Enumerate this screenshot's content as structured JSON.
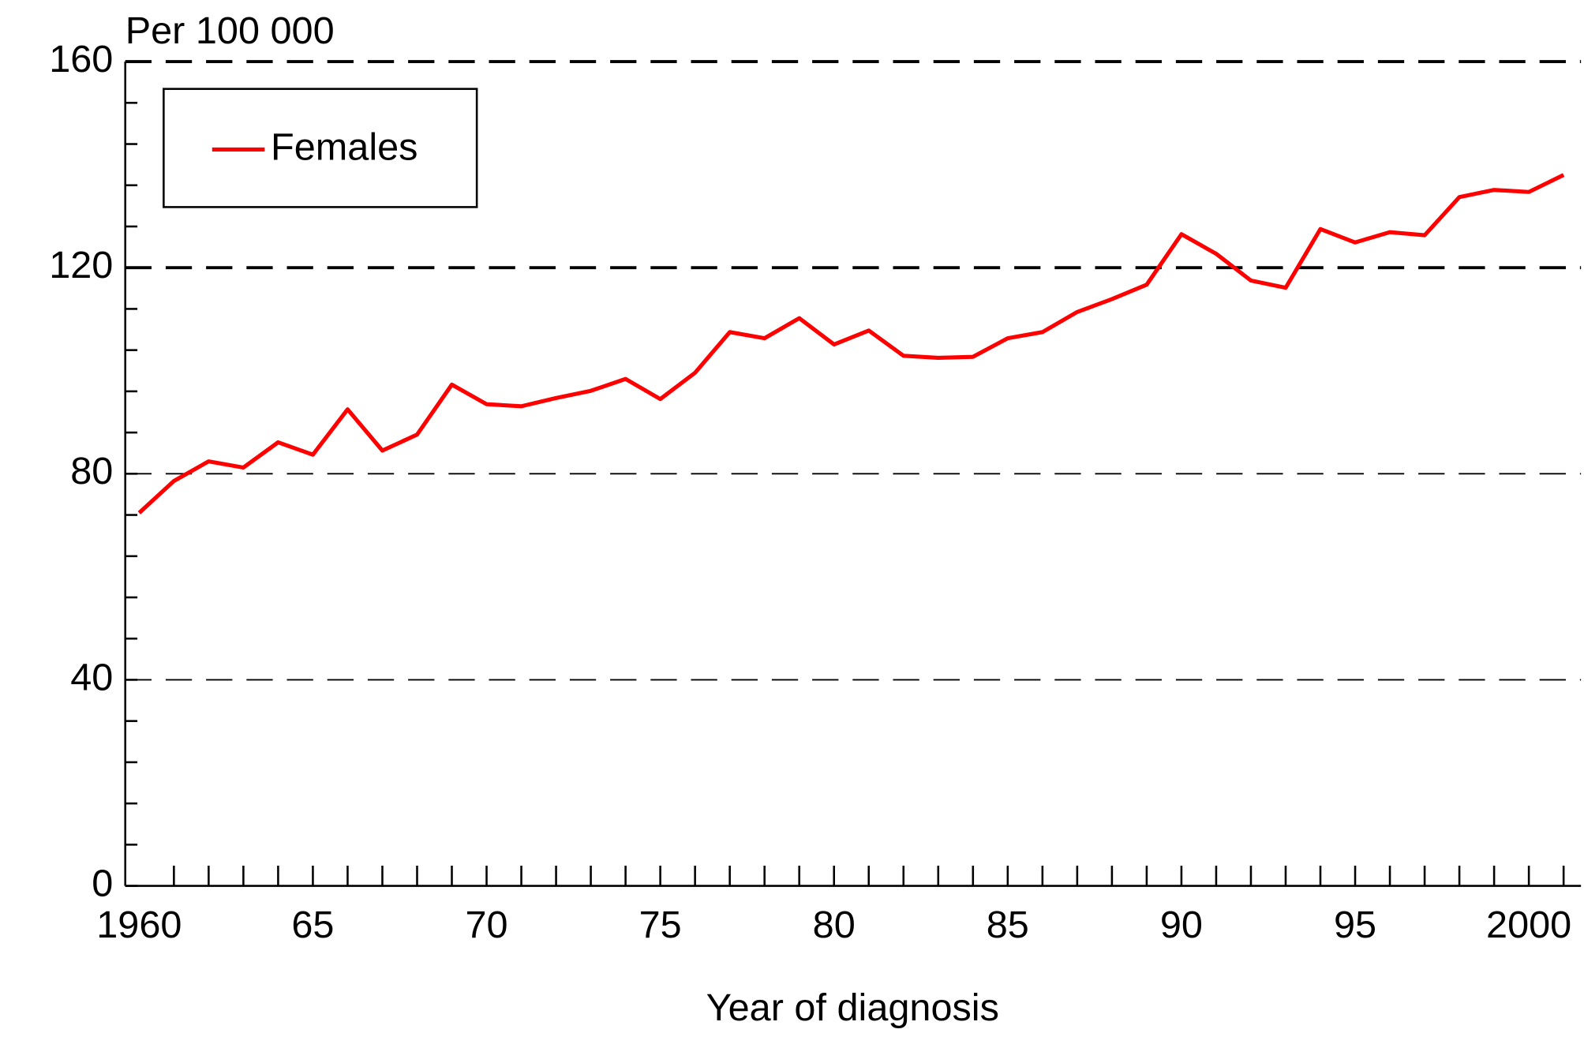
{
  "chart_data": {
    "type": "line",
    "y_label": "Per 100 000",
    "x_label": "Year of diagnosis",
    "x": [
      1960,
      1961,
      1962,
      1963,
      1964,
      1965,
      1966,
      1967,
      1968,
      1969,
      1970,
      1971,
      1972,
      1973,
      1974,
      1975,
      1976,
      1977,
      1978,
      1979,
      1980,
      1981,
      1982,
      1983,
      1984,
      1985,
      1986,
      1987,
      1988,
      1989,
      1990,
      1991,
      1992,
      1993,
      1994,
      1995,
      1996,
      1997,
      1998,
      1999,
      2000,
      2001
    ],
    "series": [
      {
        "name": "Females",
        "color": "#ff0000",
        "values": [
          72.4,
          78.6,
          82.4,
          81.2,
          86.1,
          83.7,
          92.5,
          84.5,
          87.6,
          97.3,
          93.5,
          93.1,
          94.7,
          96.1,
          98.4,
          94.5,
          99.6,
          107.5,
          106.3,
          110.2,
          105.1,
          107.8,
          102.9,
          102.5,
          102.7,
          106.3,
          107.5,
          111.4,
          113.9,
          116.7,
          126.5,
          122.7,
          117.5,
          116.1,
          127.5,
          124.9,
          126.9,
          126.3,
          133.7,
          135.1,
          134.7,
          138.0
        ]
      }
    ],
    "xlim": [
      1959.6,
      2001.5
    ],
    "ylim": [
      0,
      160
    ],
    "xticks": [
      1960,
      {
        "value": 1965,
        "label": "65"
      },
      {
        "value": 1970,
        "label": "70"
      },
      {
        "value": 1975,
        "label": "75"
      },
      {
        "value": 1980,
        "label": "80"
      },
      {
        "value": 1985,
        "label": "85"
      },
      {
        "value": 1990,
        "label": "90"
      },
      {
        "value": 1995,
        "label": "95"
      },
      2000
    ],
    "xminorticks": [
      1961,
      1962,
      1963,
      1964,
      1965,
      1966,
      1967,
      1968,
      1969,
      1970,
      1971,
      1972,
      1973,
      1974,
      1975,
      1976,
      1977,
      1978,
      1979,
      1980,
      1981,
      1982,
      1983,
      1984,
      1985,
      1986,
      1987,
      1988,
      1989,
      1990,
      1991,
      1992,
      1993,
      1994,
      1995,
      1996,
      1997,
      1998,
      1999,
      2000,
      2001
    ],
    "yticks": [
      0,
      40,
      80,
      120,
      160
    ],
    "yminorticks": [
      8,
      16,
      24,
      32,
      48,
      56,
      64,
      72,
      88,
      96,
      104,
      112,
      128,
      136,
      144,
      152
    ],
    "grid": true,
    "legend": "upper left"
  }
}
